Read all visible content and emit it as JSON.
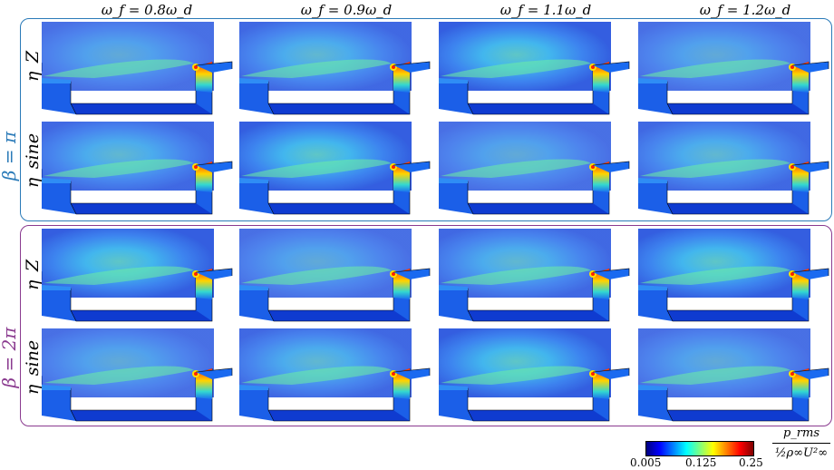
{
  "column_headers": [
    "ω_f = 0.8ω_d",
    "ω_f = 0.9ω_d",
    "ω_f = 1.1ω_d",
    "ω_f = 1.2ω_d"
  ],
  "groups": [
    {
      "label": "β = π",
      "color": "#2a7ab8",
      "rows": [
        "η_Z",
        "η_sine"
      ]
    },
    {
      "label": "β = 2π",
      "color": "#8a3a8f",
      "rows": [
        "η_Z",
        "η_sine"
      ]
    }
  ],
  "colorbar": {
    "ticks": [
      "0.005",
      "0.125",
      "0.25"
    ],
    "title_num": "p_rms",
    "title_den": "½ρ∞U²∞"
  }
}
